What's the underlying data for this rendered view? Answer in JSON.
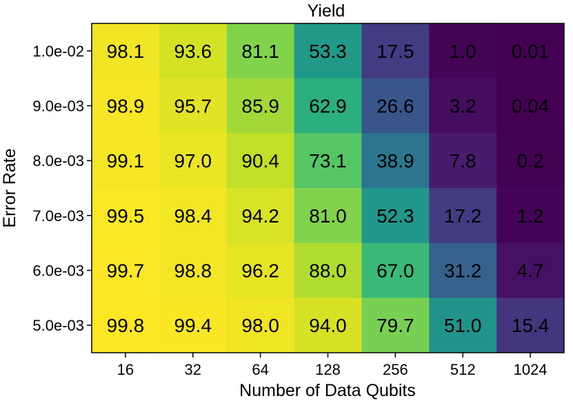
{
  "chart_data": {
    "type": "heatmap",
    "title": "Yield",
    "xlabel": "Number of Data Qubits",
    "ylabel": "Error Rate",
    "x": [
      "16",
      "32",
      "64",
      "128",
      "256",
      "512",
      "1024"
    ],
    "y": [
      "1.0e-02",
      "9.0e-03",
      "8.0e-03",
      "7.0e-03",
      "6.0e-03",
      "5.0e-03"
    ],
    "values": [
      [
        "98.1",
        "93.6",
        "81.1",
        "53.3",
        "17.5",
        "1.0",
        "0.01"
      ],
      [
        "98.9",
        "95.7",
        "85.9",
        "62.9",
        "26.6",
        "3.2",
        "0.04"
      ],
      [
        "99.1",
        "97.0",
        "90.4",
        "73.1",
        "38.9",
        "7.8",
        "0.2"
      ],
      [
        "99.5",
        "98.4",
        "94.2",
        "81.0",
        "52.3",
        "17.2",
        "1.2"
      ],
      [
        "99.7",
        "98.8",
        "96.2",
        "88.0",
        "67.0",
        "31.2",
        "4.7"
      ],
      [
        "99.8",
        "99.4",
        "98.0",
        "94.0",
        "79.7",
        "51.0",
        "15.4"
      ]
    ],
    "colormap": "viridis",
    "vmin": 0,
    "vmax": 100
  }
}
